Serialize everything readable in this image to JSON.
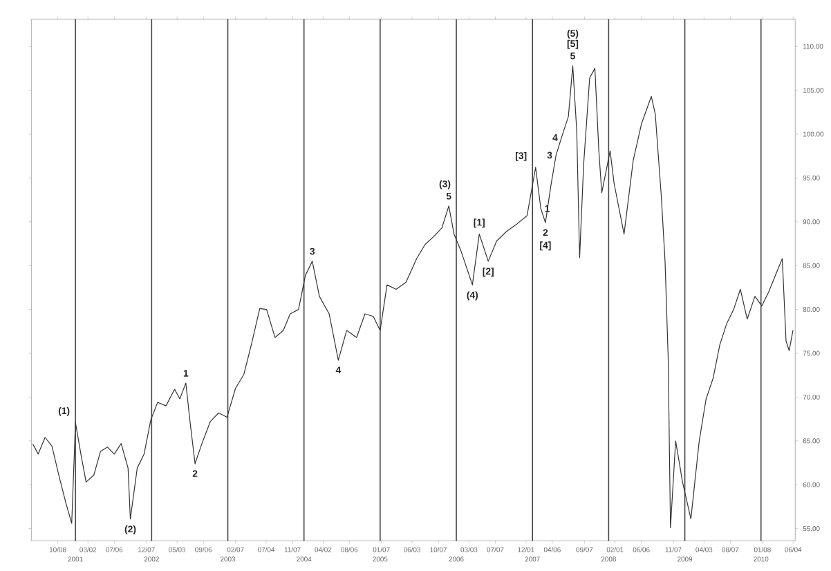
{
  "chart_data": {
    "type": "line",
    "x": [
      "2000-06-11",
      "2000-07-06",
      "2000-08-08",
      "2000-09-10",
      "2000-10-13",
      "2000-11-15",
      "2000-12-14",
      "2001-01-01",
      "2001-01-27",
      "2001-02-21",
      "2001-03-30",
      "2001-05-01",
      "2001-06-03",
      "2001-07-06",
      "2001-08-08",
      "2001-09-10",
      "2001-09-21",
      "2001-10-24",
      "2001-11-26",
      "2001-12-28",
      "2002-01-30",
      "2002-03-11",
      "2002-04-21",
      "2002-05-16",
      "2002-06-14",
      "2002-07-03",
      "2002-07-28",
      "2002-08-30",
      "2002-10-09",
      "2002-11-18",
      "2002-12-28",
      "2003-02-07",
      "2003-03-19",
      "2003-04-24",
      "2003-06-03",
      "2003-07-06",
      "2003-08-15",
      "2003-09-24",
      "2003-10-27",
      "2003-12-06",
      "2004-01-08",
      "2004-02-10",
      "2004-03-15",
      "2004-05-01",
      "2004-06-14",
      "2004-07-24",
      "2004-09-10",
      "2004-10-20",
      "2004-11-29",
      "2005-01-01",
      "2005-02-03",
      "2005-03-19",
      "2005-05-05",
      "2005-06-25",
      "2005-08-04",
      "2005-09-14",
      "2005-10-24",
      "2005-11-26",
      "2005-12-21",
      "2006-01-23",
      "2006-03-19",
      "2006-04-21",
      "2006-06-03",
      "2006-07-13",
      "2006-08-30",
      "2006-10-16",
      "2006-12-06",
      "2007-01-16",
      "2007-02-10",
      "2007-03-04",
      "2007-03-30",
      "2007-04-24",
      "2007-05-20",
      "2007-06-22",
      "2007-07-13",
      "2007-08-01",
      "2007-08-15",
      "2007-09-03",
      "2007-10-02",
      "2007-10-27",
      "2007-11-15",
      "2007-11-29",
      "2008-01-08",
      "2008-01-27",
      "2008-03-15",
      "2008-04-28",
      "2008-06-07",
      "2008-07-24",
      "2008-08-12",
      "2008-09-10",
      "2008-09-28",
      "2008-10-13",
      "2008-10-24",
      "2008-11-18",
      "2008-12-21",
      "2009-01-30",
      "2009-03-11",
      "2009-04-13",
      "2009-05-16",
      "2009-06-18",
      "2009-07-21",
      "2009-08-23",
      "2009-09-24",
      "2009-10-27",
      "2009-12-03",
      "2010-01-05",
      "2010-02-07",
      "2010-03-11",
      "2010-04-13",
      "2010-05-01",
      "2010-05-16",
      "2010-06-03"
    ],
    "values": [
      64.6,
      63.5,
      65.4,
      64.4,
      61.1,
      58.0,
      55.6,
      67.1,
      63.5,
      60.3,
      61.1,
      63.8,
      64.3,
      63.5,
      64.7,
      61.9,
      56.1,
      61.9,
      63.5,
      67.4,
      69.4,
      69.0,
      70.9,
      69.8,
      71.6,
      67.4,
      62.4,
      64.7,
      67.2,
      68.2,
      67.7,
      71.0,
      72.6,
      76.0,
      80.1,
      80.0,
      76.8,
      77.6,
      79.5,
      80.0,
      83.9,
      85.5,
      81.5,
      79.5,
      74.2,
      77.6,
      76.8,
      79.5,
      79.2,
      77.6,
      82.8,
      82.3,
      83.1,
      85.8,
      87.4,
      88.3,
      89.3,
      91.8,
      88.6,
      86.7,
      82.8,
      88.6,
      85.5,
      87.8,
      88.9,
      89.7,
      90.7,
      96.2,
      91.5,
      89.9,
      94.1,
      97.6,
      99.6,
      102.0,
      107.8,
      100.4,
      85.9,
      96.5,
      106.4,
      107.5,
      98.1,
      93.3,
      98.1,
      94.4,
      88.6,
      97.0,
      101.2,
      104.3,
      102.3,
      92.9,
      85.5,
      74.5,
      55.1,
      65.0,
      60.3,
      56.1,
      65.0,
      69.8,
      72.1,
      76.0,
      78.4,
      80.0,
      82.3,
      78.9,
      81.5,
      80.4,
      82.0,
      83.9,
      85.8,
      76.4,
      75.3,
      77.6
    ],
    "color": "#333333",
    "xlim": [
      "2000-06-03",
      "2010-06-14"
    ],
    "ylim": [
      53.6,
      113.1
    ],
    "xticks": [
      {
        "value": "2000-10-08",
        "label": "10/08"
      },
      {
        "value": "2001-03-02",
        "label": "03/02"
      },
      {
        "value": "2001-07-06",
        "label": "07/06"
      },
      {
        "value": "2001-12-07",
        "label": "12/07"
      },
      {
        "value": "2002-05-03",
        "label": "05/03"
      },
      {
        "value": "2002-09-06",
        "label": "09/06"
      },
      {
        "value": "2003-02-07",
        "label": "02/07"
      },
      {
        "value": "2003-07-04",
        "label": "07/04"
      },
      {
        "value": "2003-11-07",
        "label": "11/07"
      },
      {
        "value": "2004-04-02",
        "label": "04/02"
      },
      {
        "value": "2004-08-06",
        "label": "08/06"
      },
      {
        "value": "2005-01-07",
        "label": "01/07"
      },
      {
        "value": "2005-06-03",
        "label": "06/03"
      },
      {
        "value": "2005-10-07",
        "label": "10/07"
      },
      {
        "value": "2006-03-03",
        "label": "03/03"
      },
      {
        "value": "2006-07-07",
        "label": "07/07"
      },
      {
        "value": "2006-12-01",
        "label": "12/01"
      },
      {
        "value": "2007-04-06",
        "label": "04/06"
      },
      {
        "value": "2007-09-07",
        "label": "09/07"
      },
      {
        "value": "2008-02-01",
        "label": "02/01"
      },
      {
        "value": "2008-06-06",
        "label": "06/06"
      },
      {
        "value": "2008-11-07",
        "label": "11/07"
      },
      {
        "value": "2009-04-03",
        "label": "04/03"
      },
      {
        "value": "2009-08-07",
        "label": "08/07"
      },
      {
        "value": "2010-01-08",
        "label": "01/08"
      },
      {
        "value": "2010-06-04",
        "label": "06/04"
      }
    ],
    "yticks": [
      {
        "value": 55,
        "label": "55.00"
      },
      {
        "value": 60,
        "label": "60.00"
      },
      {
        "value": 65,
        "label": "65.00"
      },
      {
        "value": 70,
        "label": "70.00"
      },
      {
        "value": 75,
        "label": "75.00"
      },
      {
        "value": 80,
        "label": "80.00"
      },
      {
        "value": 85,
        "label": "85.00"
      },
      {
        "value": 90,
        "label": "90.00"
      },
      {
        "value": 95,
        "label": "95.00"
      },
      {
        "value": 100,
        "label": "100.00"
      },
      {
        "value": 105,
        "label": "105.00"
      },
      {
        "value": 110,
        "label": "110.00"
      }
    ],
    "ref_lines": [
      {
        "axis": "x",
        "value": "2001-01-01",
        "label": "2001",
        "color": "#444444"
      },
      {
        "axis": "x",
        "value": "2002-01-01",
        "label": "2002",
        "color": "#444444"
      },
      {
        "axis": "x",
        "value": "2003-01-01",
        "label": "2003",
        "color": "#444444"
      },
      {
        "axis": "x",
        "value": "2004-01-01",
        "label": "2004",
        "color": "#444444"
      },
      {
        "axis": "x",
        "value": "2005-01-01",
        "label": "2005",
        "color": "#444444"
      },
      {
        "axis": "x",
        "value": "2006-01-01",
        "label": "2006",
        "color": "#444444"
      },
      {
        "axis": "x",
        "value": "2007-01-01",
        "label": "2007",
        "color": "#444444"
      },
      {
        "axis": "x",
        "value": "2008-01-01",
        "label": "2008",
        "color": "#444444"
      },
      {
        "axis": "x",
        "value": "2009-01-01",
        "label": "2009",
        "color": "#444444"
      },
      {
        "axis": "x",
        "value": "2010-01-01",
        "label": "2010",
        "color": "#444444"
      }
    ],
    "annotations": [
      {
        "text": "(1)",
        "x": "2001-01-01",
        "y": 67.1
      },
      {
        "text": "(2)",
        "x": "2001-09-21",
        "y": 56.1
      },
      {
        "text": "1",
        "x": "2002-06-14",
        "y": 71.6
      },
      {
        "text": "2",
        "x": "2002-07-28",
        "y": 62.4
      },
      {
        "text": "3",
        "x": "2004-02-10",
        "y": 85.5
      },
      {
        "text": "4",
        "x": "2004-06-14",
        "y": 74.2
      },
      {
        "text": "5",
        "x": "2005-11-26",
        "y": 91.8
      },
      {
        "text": "(3)",
        "x": "2005-11-26",
        "y": 91.8
      },
      {
        "text": "(4)",
        "x": "2006-03-19",
        "y": 82.8
      },
      {
        "text": "[1]",
        "x": "2006-04-21",
        "y": 88.6
      },
      {
        "text": "[2]",
        "x": "2006-06-03",
        "y": 85.5
      },
      {
        "text": "[3]",
        "x": "2007-01-16",
        "y": 96.2
      },
      {
        "text": "1",
        "x": "2007-02-10",
        "y": 91.5
      },
      {
        "text": "2",
        "x": "2007-03-04",
        "y": 89.9
      },
      {
        "text": "[4]",
        "x": "2007-03-04",
        "y": 89.9
      },
      {
        "text": "3",
        "x": "2007-04-24",
        "y": 97.6
      },
      {
        "text": "4",
        "x": "2007-05-20",
        "y": 99.6
      },
      {
        "text": "5",
        "x": "2007-07-13",
        "y": 107.8
      },
      {
        "text": "[5]",
        "x": "2007-07-13",
        "y": 107.8
      },
      {
        "text": "(5)",
        "x": "2007-07-13",
        "y": 107.8
      }
    ]
  }
}
